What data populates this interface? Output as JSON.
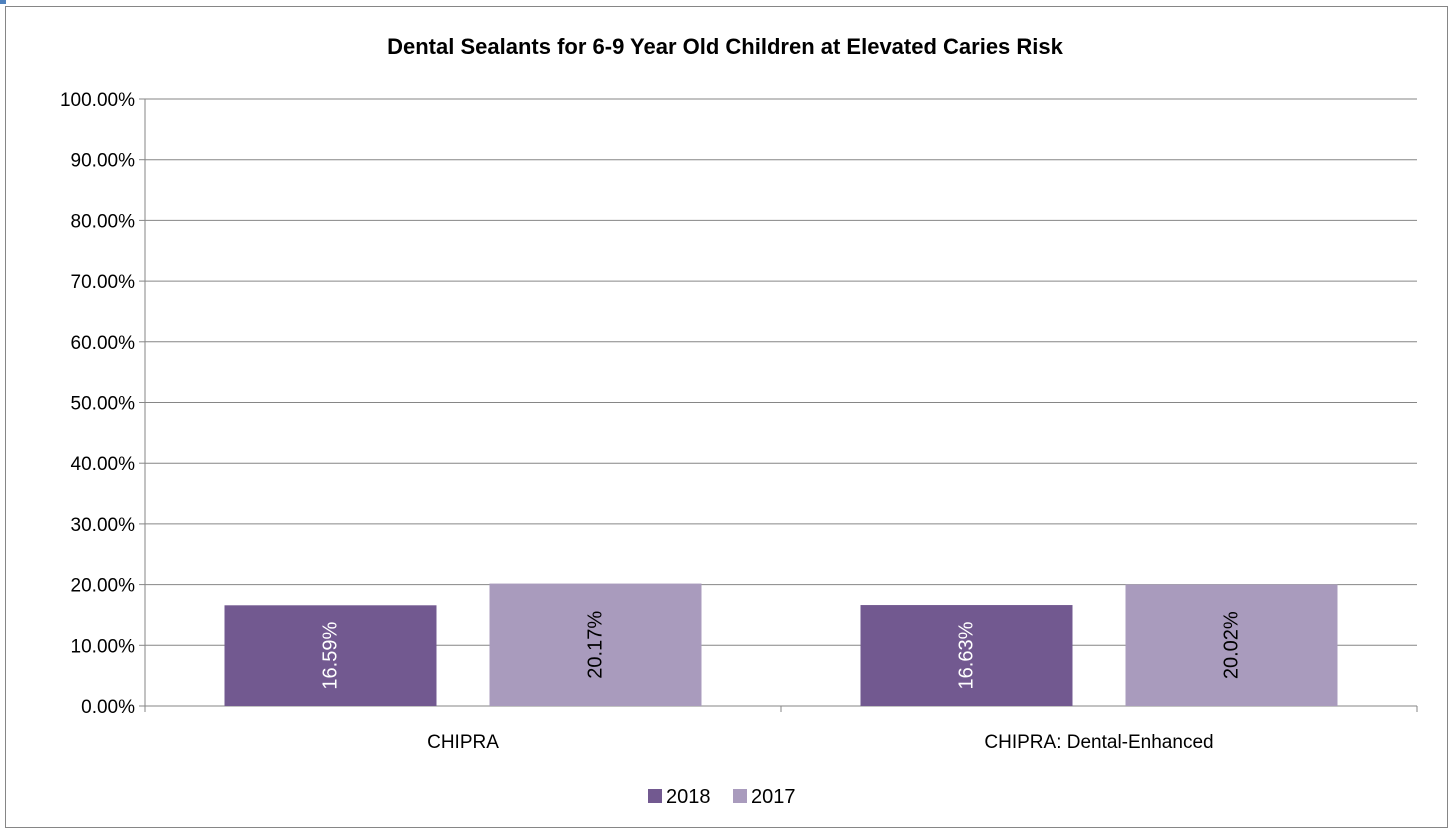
{
  "chart_data": {
    "type": "bar",
    "title": "Dental Sealants for 6-9 Year Old Children at Elevated Caries Risk",
    "xlabel": "",
    "ylabel": "",
    "categories": [
      "CHIPRA",
      "CHIPRA: Dental-Enhanced"
    ],
    "series": [
      {
        "name": "2018",
        "values": [
          16.59,
          16.63
        ],
        "color": "#725990",
        "labels": [
          "16.59%",
          "16.63%"
        ],
        "label_color": "#ffffff"
      },
      {
        "name": "2017",
        "values": [
          20.17,
          20.02
        ],
        "color": "#a99bbd",
        "labels": [
          "20.17%",
          "20.02%"
        ],
        "label_color": "#000000"
      }
    ],
    "ylim": [
      0,
      100
    ],
    "yticks": [
      0,
      10,
      20,
      30,
      40,
      50,
      60,
      70,
      80,
      90,
      100
    ],
    "ytick_labels": [
      "0.00%",
      "10.00%",
      "20.00%",
      "30.00%",
      "40.00%",
      "50.00%",
      "60.00%",
      "70.00%",
      "80.00%",
      "90.00%",
      "100.00%"
    ],
    "grid": true,
    "legend_position": "bottom",
    "gridline_color": "#868686"
  }
}
